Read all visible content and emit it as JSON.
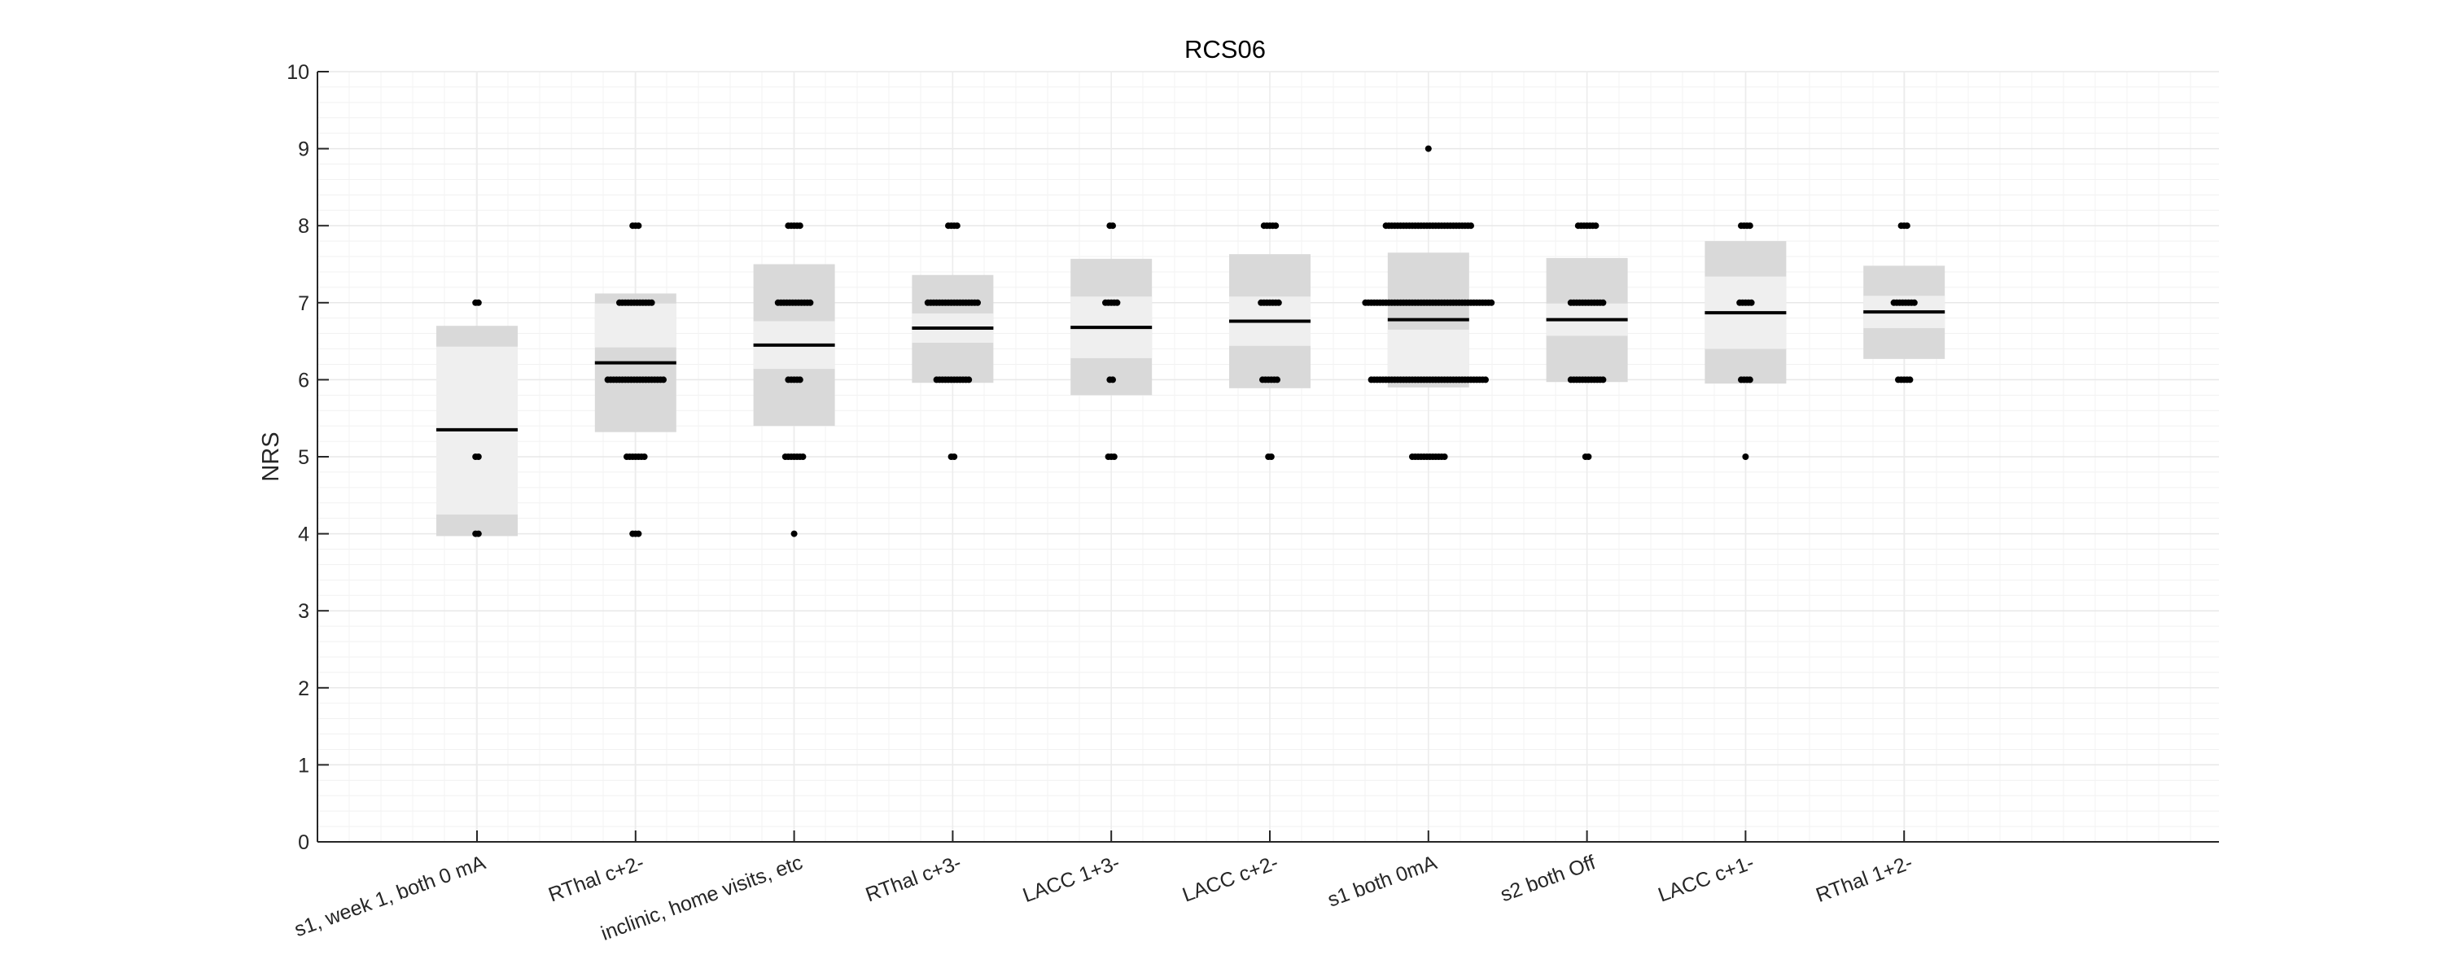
{
  "chart_data": {
    "type": "box",
    "title": "RCS06",
    "xlabel": "",
    "ylabel": "NRS",
    "ylim": [
      0,
      10
    ],
    "yticks": [
      "0",
      "1",
      "2",
      "3",
      "4",
      "5",
      "6",
      "7",
      "8",
      "9",
      "10"
    ],
    "grid": true,
    "minor_grid": true,
    "colors": {
      "box_outer": "#d9d9d9",
      "box_inner": "#efefef",
      "mean": "#000000",
      "points": "#000000",
      "grid": "#e8e8e8",
      "axis": "#262626"
    },
    "categories": [
      {
        "label": "s1, week 1, both 0 mA",
        "mean": 5.35,
        "box_lo": 3.97,
        "box_hi": 6.7,
        "inner_lo": 4.25,
        "inner_hi": 6.43,
        "points": [
          {
            "y": 7,
            "n": 2
          },
          {
            "y": 5,
            "n": 2
          },
          {
            "y": 4,
            "n": 2
          }
        ]
      },
      {
        "label": "RThal c+2-",
        "mean": 6.22,
        "box_lo": 5.32,
        "box_hi": 7.12,
        "inner_lo": 6.42,
        "inner_hi": 6.99,
        "points": [
          {
            "y": 8,
            "n": 3
          },
          {
            "y": 7,
            "n": 12
          },
          {
            "y": 6,
            "n": 20
          },
          {
            "y": 5,
            "n": 7
          },
          {
            "y": 4,
            "n": 3
          }
        ]
      },
      {
        "label": "inclinic, home visits, etc",
        "mean": 6.45,
        "box_lo": 5.4,
        "box_hi": 7.5,
        "inner_lo": 6.14,
        "inner_hi": 6.76,
        "points": [
          {
            "y": 8,
            "n": 5
          },
          {
            "y": 7,
            "n": 12
          },
          {
            "y": 6,
            "n": 5
          },
          {
            "y": 5,
            "n": 7
          },
          {
            "y": 4,
            "n": 1
          }
        ]
      },
      {
        "label": "RThal c+3-",
        "mean": 6.67,
        "box_lo": 5.96,
        "box_hi": 7.36,
        "inner_lo": 6.48,
        "inner_hi": 6.86,
        "points": [
          {
            "y": 8,
            "n": 4
          },
          {
            "y": 7,
            "n": 18
          },
          {
            "y": 6,
            "n": 12
          },
          {
            "y": 5,
            "n": 2
          }
        ]
      },
      {
        "label": "LACC 1+3-",
        "mean": 6.68,
        "box_lo": 5.8,
        "box_hi": 7.57,
        "inner_lo": 6.28,
        "inner_hi": 7.08,
        "points": [
          {
            "y": 8,
            "n": 2
          },
          {
            "y": 7,
            "n": 5
          },
          {
            "y": 6,
            "n": 2
          },
          {
            "y": 5,
            "n": 3
          }
        ]
      },
      {
        "label": "LACC c+2-",
        "mean": 6.76,
        "box_lo": 5.89,
        "box_hi": 7.63,
        "inner_lo": 6.44,
        "inner_hi": 7.08,
        "points": [
          {
            "y": 8,
            "n": 5
          },
          {
            "y": 7,
            "n": 7
          },
          {
            "y": 6,
            "n": 6
          },
          {
            "y": 5,
            "n": 2
          }
        ]
      },
      {
        "label": "s1 both 0mA",
        "mean": 6.78,
        "box_lo": 5.9,
        "box_hi": 7.65,
        "inner_lo": 6.0,
        "inner_hi": 6.65,
        "points": [
          {
            "y": 9,
            "n": 1
          },
          {
            "y": 8,
            "n": 30
          },
          {
            "y": 7,
            "n": 44
          },
          {
            "y": 6,
            "n": 40
          },
          {
            "y": 5,
            "n": 12
          }
        ]
      },
      {
        "label": "s2 both Off",
        "mean": 6.78,
        "box_lo": 5.97,
        "box_hi": 7.58,
        "inner_lo": 6.57,
        "inner_hi": 6.99,
        "points": [
          {
            "y": 8,
            "n": 7
          },
          {
            "y": 7,
            "n": 12
          },
          {
            "y": 6,
            "n": 12
          },
          {
            "y": 5,
            "n": 2
          }
        ]
      },
      {
        "label": "LACC c+1-",
        "mean": 6.87,
        "box_lo": 5.95,
        "box_hi": 7.8,
        "inner_lo": 6.4,
        "inner_hi": 7.34,
        "points": [
          {
            "y": 8,
            "n": 4
          },
          {
            "y": 7,
            "n": 5
          },
          {
            "y": 6,
            "n": 4
          },
          {
            "y": 5,
            "n": 1
          }
        ]
      },
      {
        "label": "RThal 1+2-",
        "mean": 6.88,
        "box_lo": 6.27,
        "box_hi": 7.48,
        "inner_lo": 6.67,
        "inner_hi": 7.09,
        "points": [
          {
            "y": 8,
            "n": 3
          },
          {
            "y": 7,
            "n": 8
          },
          {
            "y": 6,
            "n": 5
          }
        ]
      }
    ]
  }
}
